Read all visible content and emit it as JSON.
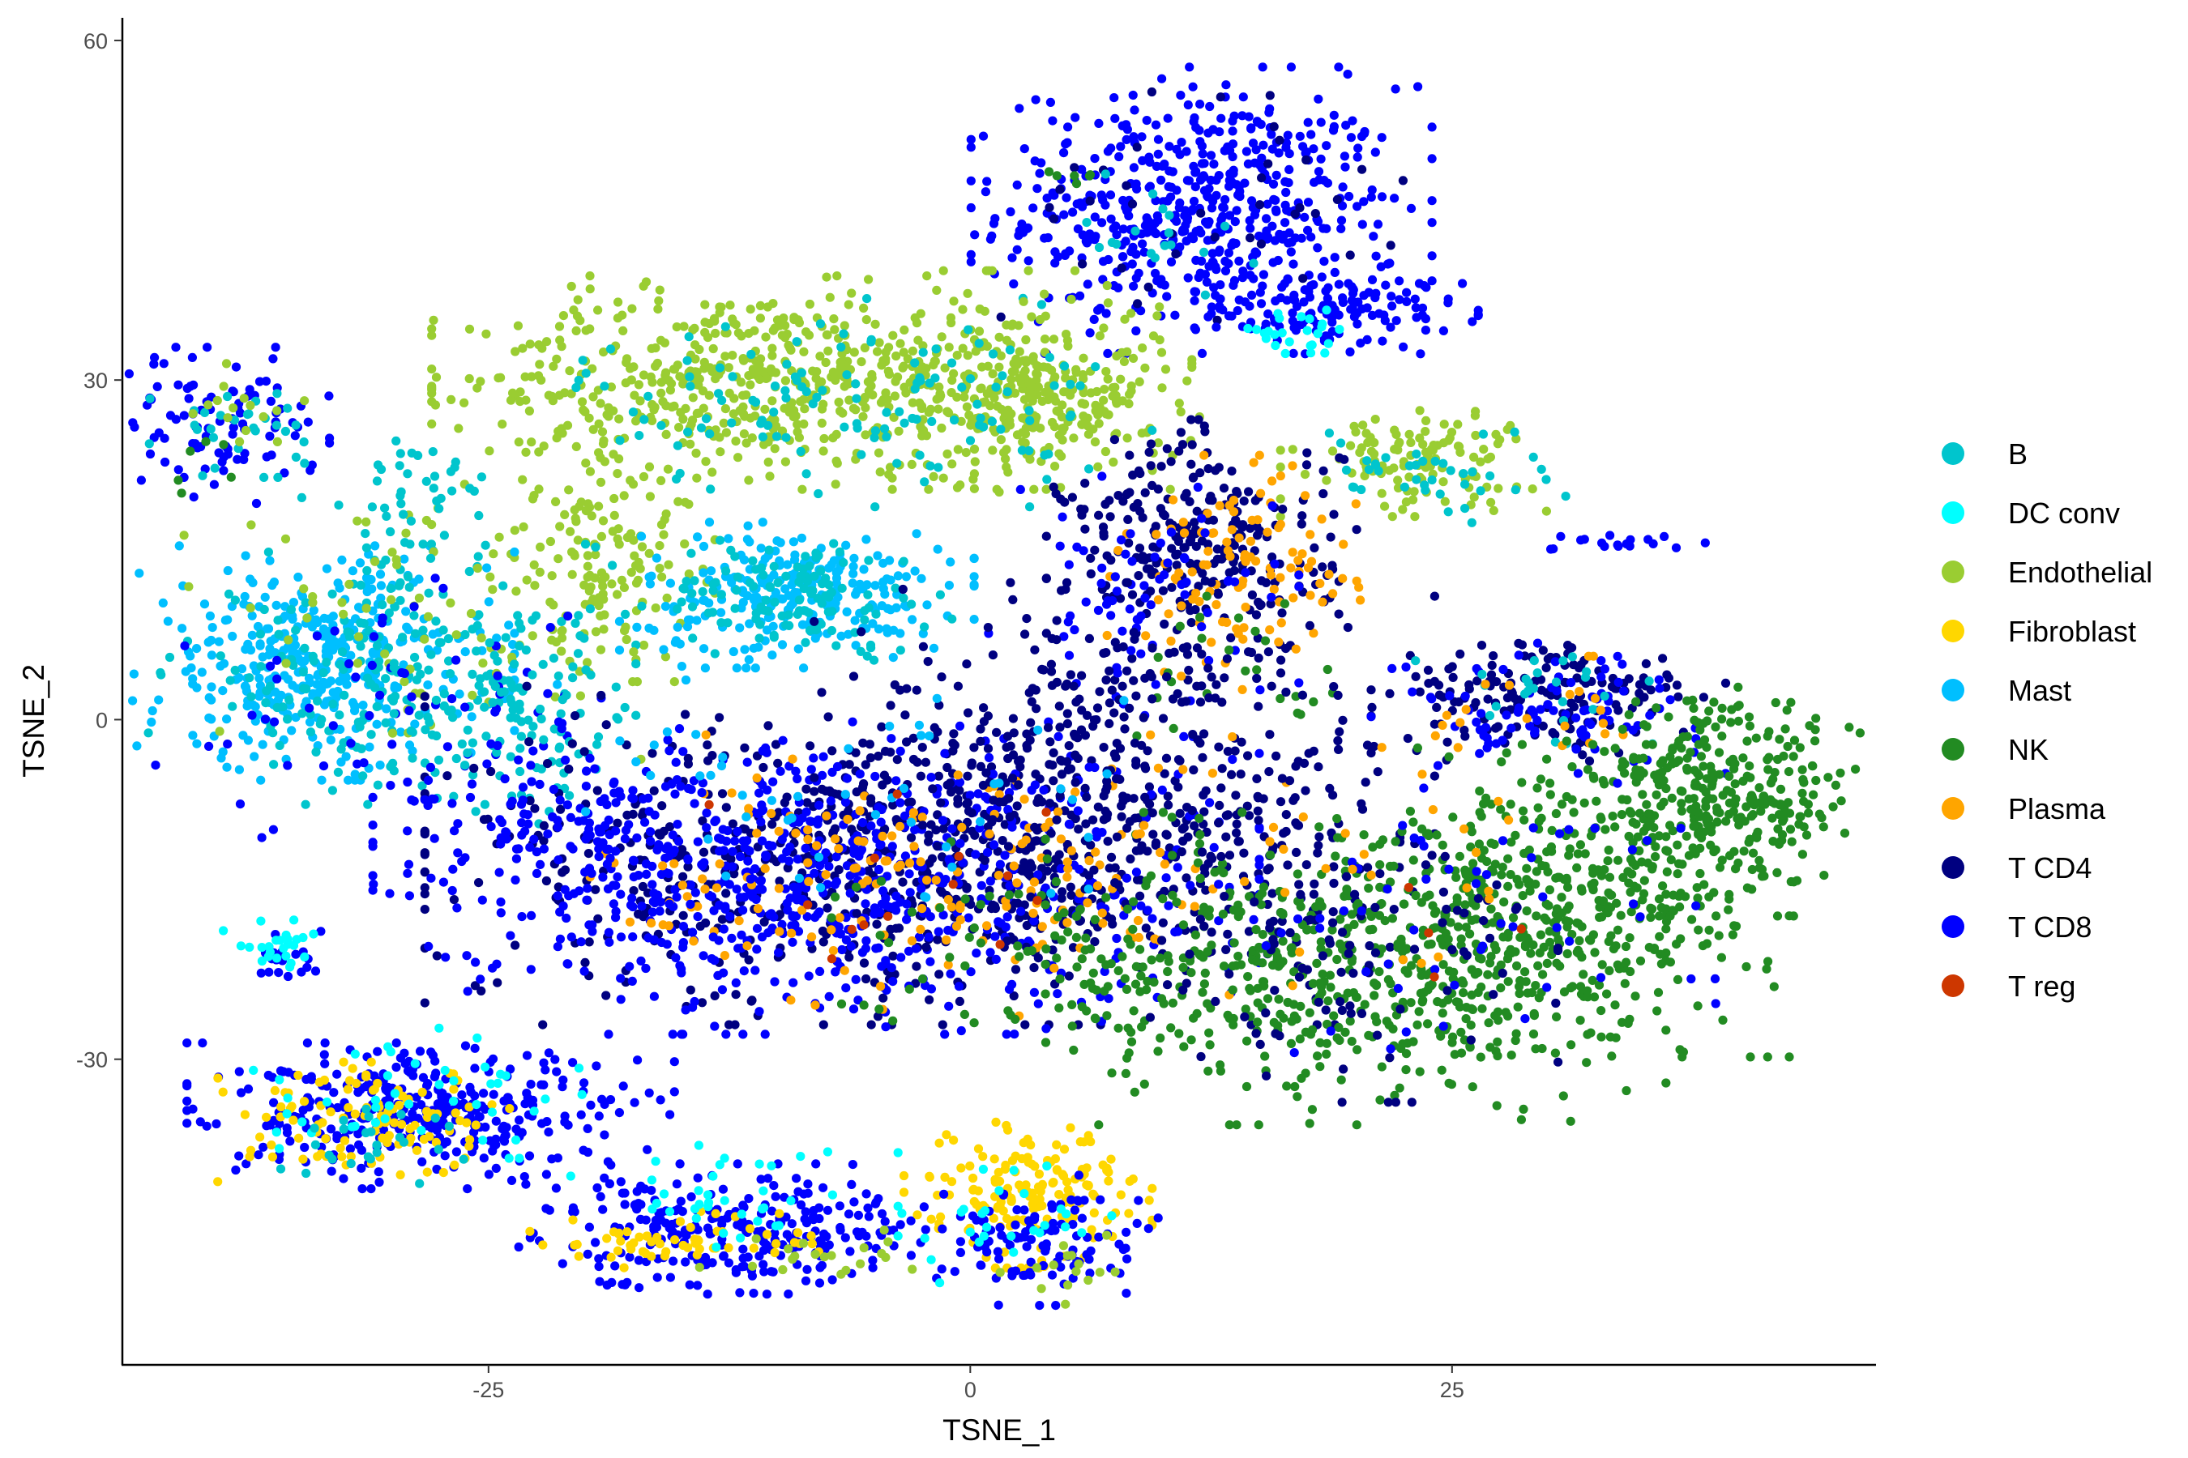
{
  "chart_data": {
    "type": "scatter",
    "title": "",
    "xlabel": "TSNE_1",
    "ylabel": "TSNE_2",
    "xlim": [
      -44,
      47
    ],
    "ylim": [
      -57,
      62
    ],
    "x_ticks": [
      {
        "value": -25,
        "label": "-25"
      },
      {
        "value": 0,
        "label": "0"
      },
      {
        "value": 25,
        "label": "25"
      }
    ],
    "y_ticks": [
      {
        "value": -30,
        "label": "-30"
      },
      {
        "value": 0,
        "label": "0"
      },
      {
        "value": 30,
        "label": "30"
      },
      {
        "value": 60,
        "label": "60"
      }
    ],
    "grid": false,
    "legend_position": "right",
    "series": [
      {
        "name": "B",
        "color": "#00C5CD"
      },
      {
        "name": "DC conv",
        "color": "#00FFFF"
      },
      {
        "name": "Endothelial",
        "color": "#9ACD32"
      },
      {
        "name": "Fibroblast",
        "color": "#FFD700"
      },
      {
        "name": "Mast",
        "color": "#00BFFF"
      },
      {
        "name": "NK",
        "color": "#228B22"
      },
      {
        "name": "Plasma",
        "color": "#FFA500"
      },
      {
        "name": "T CD4",
        "color": "#000080"
      },
      {
        "name": "T CD8",
        "color": "#0000FF"
      },
      {
        "name": "T reg",
        "color": "#CD3700"
      }
    ],
    "clusters": [
      {
        "series": "T CD8",
        "cx": 12,
        "cy": 45,
        "sx": 5.2,
        "sy": 5.5,
        "n": 550
      },
      {
        "series": "T CD4",
        "cx": 12,
        "cy": 45,
        "sx": 5,
        "sy": 5,
        "n": 40
      },
      {
        "series": "T CD8",
        "cx": 19,
        "cy": 36,
        "sx": 3.2,
        "sy": 1.6,
        "n": 120
      },
      {
        "series": "DC conv",
        "cx": 17,
        "cy": 34,
        "sx": 2,
        "sy": 1,
        "n": 25
      },
      {
        "series": "B",
        "cx": 9,
        "cy": 43,
        "sx": 3,
        "sy": 3,
        "n": 20
      },
      {
        "series": "NK",
        "cx": 5,
        "cy": 48,
        "sx": 1,
        "sy": 2,
        "n": 6
      },
      {
        "series": "Endothelial",
        "cx": -13,
        "cy": 30,
        "sx": 6.5,
        "sy": 4,
        "n": 420
      },
      {
        "series": "Endothelial",
        "cx": 0,
        "cy": 30,
        "sx": 5,
        "sy": 4.2,
        "n": 320
      },
      {
        "series": "Endothelial",
        "cx": 5,
        "cy": 27,
        "sx": 3,
        "sy": 3,
        "n": 120
      },
      {
        "series": "Endothelial",
        "cx": -19,
        "cy": 16,
        "sx": 2.5,
        "sy": 5.5,
        "n": 140
      },
      {
        "series": "B",
        "cx": -6,
        "cy": 28,
        "sx": 7,
        "sy": 4,
        "n": 130
      },
      {
        "series": "Mast",
        "cx": -9,
        "cy": 11,
        "sx": 4,
        "sy": 2.8,
        "n": 260
      },
      {
        "series": "B",
        "cx": -9,
        "cy": 11,
        "sx": 3.5,
        "sy": 2.5,
        "n": 120
      },
      {
        "series": "Mast",
        "cx": -34,
        "cy": 5,
        "sx": 4.5,
        "sy": 4.5,
        "n": 400
      },
      {
        "series": "B",
        "cx": -30,
        "cy": 4,
        "sx": 5.5,
        "sy": 5,
        "n": 220
      },
      {
        "series": "Endothelial",
        "cx": -27,
        "cy": 8,
        "sx": 6,
        "sy": 5,
        "n": 90
      },
      {
        "series": "T CD8",
        "cx": -30,
        "cy": 1,
        "sx": 6,
        "sy": 5,
        "n": 70
      },
      {
        "series": "B",
        "cx": -23,
        "cy": 0,
        "sx": 3,
        "sy": 4,
        "n": 90
      },
      {
        "series": "B",
        "cx": -29,
        "cy": 20,
        "sx": 2.5,
        "sy": 2.5,
        "n": 40
      },
      {
        "series": "T CD8",
        "cx": -39,
        "cy": 26,
        "sx": 2.5,
        "sy": 3,
        "n": 100
      },
      {
        "series": "B",
        "cx": -38,
        "cy": 26,
        "sx": 2,
        "sy": 2,
        "n": 30
      },
      {
        "series": "Endothelial",
        "cx": -38,
        "cy": 28,
        "sx": 2,
        "sy": 1.5,
        "n": 15
      },
      {
        "series": "NK",
        "cx": -40,
        "cy": 23,
        "sx": 1,
        "sy": 2,
        "n": 6
      },
      {
        "series": "Endothelial",
        "cx": 23,
        "cy": 23,
        "sx": 3,
        "sy": 2.2,
        "n": 120
      },
      {
        "series": "B",
        "cx": 24,
        "cy": 22,
        "sx": 3,
        "sy": 2,
        "n": 40
      },
      {
        "series": "T CD8",
        "cx": 34,
        "cy": 15.5,
        "sx": 1.8,
        "sy": 0.5,
        "n": 18
      },
      {
        "series": "T CD4",
        "cx": 12,
        "cy": 15,
        "sx": 3.5,
        "sy": 5,
        "n": 280
      },
      {
        "series": "Plasma",
        "cx": 14,
        "cy": 13,
        "sx": 3,
        "sy": 4.5,
        "n": 110
      },
      {
        "series": "T CD8",
        "cx": 9,
        "cy": 10,
        "sx": 3.5,
        "sy": 5,
        "n": 80
      },
      {
        "series": "NK",
        "cx": 14,
        "cy": 4,
        "sx": 3,
        "sy": 3,
        "n": 25
      },
      {
        "series": "T CD4",
        "cx": 30,
        "cy": 2,
        "sx": 4,
        "sy": 2.5,
        "n": 160
      },
      {
        "series": "T CD8",
        "cx": 30,
        "cy": 1,
        "sx": 4,
        "sy": 2.5,
        "n": 90
      },
      {
        "series": "B",
        "cx": 30,
        "cy": 2,
        "sx": 3,
        "sy": 2,
        "n": 25
      },
      {
        "series": "Plasma",
        "cx": 30,
        "cy": 1,
        "sx": 3,
        "sy": 2,
        "n": 20
      },
      {
        "series": "T CD4",
        "cx": -3,
        "cy": -12,
        "sx": 11,
        "sy": 6.5,
        "n": 800
      },
      {
        "series": "T CD8",
        "cx": -8,
        "cy": -14,
        "sx": 10,
        "sy": 6,
        "n": 700
      },
      {
        "series": "Plasma",
        "cx": -2,
        "cy": -14,
        "sx": 8,
        "sy": 5.5,
        "n": 180
      },
      {
        "series": "T CD4",
        "cx": 8,
        "cy": -4,
        "sx": 7,
        "sy": 7,
        "n": 320
      },
      {
        "series": "NK",
        "cx": 6,
        "cy": -20,
        "sx": 6,
        "sy": 4,
        "n": 100
      },
      {
        "series": "T CD8",
        "cx": -20,
        "cy": -10,
        "sx": 4,
        "sy": 4,
        "n": 120
      },
      {
        "series": "Mast",
        "cx": -5,
        "cy": -8,
        "sx": 8,
        "sy": 5,
        "n": 50
      },
      {
        "series": "T reg",
        "cx": -2,
        "cy": -14,
        "sx": 6,
        "sy": 5,
        "n": 14
      },
      {
        "series": "NK",
        "cx": 20,
        "cy": -22,
        "sx": 7,
        "sy": 6,
        "n": 520
      },
      {
        "series": "NK",
        "cx": 31,
        "cy": -16,
        "sx": 5,
        "sy": 6,
        "n": 380
      },
      {
        "series": "NK",
        "cx": 39,
        "cy": -7,
        "sx": 3.5,
        "sy": 4.5,
        "n": 340
      },
      {
        "series": "T CD4",
        "cx": 19,
        "cy": -20,
        "sx": 5,
        "sy": 6,
        "n": 110
      },
      {
        "series": "T CD8",
        "cx": 25,
        "cy": -18,
        "sx": 7,
        "sy": 6,
        "n": 60
      },
      {
        "series": "Plasma",
        "cx": 20,
        "cy": -12,
        "sx": 6,
        "sy": 5,
        "n": 30
      },
      {
        "series": "T reg",
        "cx": 24,
        "cy": -21,
        "sx": 5,
        "sy": 4,
        "n": 4
      },
      {
        "series": "T CD8",
        "cx": -36,
        "cy": -21,
        "sx": 1,
        "sy": 1,
        "n": 20
      },
      {
        "series": "DC conv",
        "cx": -36,
        "cy": -20,
        "sx": 1.2,
        "sy": 1,
        "n": 25
      },
      {
        "series": "T CD8",
        "cx": -28,
        "cy": -35,
        "sx": 5.5,
        "sy": 2.8,
        "n": 360
      },
      {
        "series": "Fibroblast",
        "cx": -31,
        "cy": -36,
        "sx": 3.5,
        "sy": 2.5,
        "n": 110
      },
      {
        "series": "DC conv",
        "cx": -28,
        "cy": -33,
        "sx": 4,
        "sy": 2.5,
        "n": 45
      },
      {
        "series": "B",
        "cx": -31,
        "cy": -37,
        "sx": 2.5,
        "sy": 2,
        "n": 25
      },
      {
        "series": "T CD8",
        "cx": -12,
        "cy": -45,
        "sx": 5,
        "sy": 2.5,
        "n": 280
      },
      {
        "series": "Fibroblast",
        "cx": -15,
        "cy": -46,
        "sx": 3.5,
        "sy": 1.2,
        "n": 60
      },
      {
        "series": "DC conv",
        "cx": -12,
        "cy": -42,
        "sx": 4,
        "sy": 2,
        "n": 35
      },
      {
        "series": "Endothelial",
        "cx": -8,
        "cy": -47,
        "sx": 3,
        "sy": 1.5,
        "n": 20
      },
      {
        "series": "Fibroblast",
        "cx": 3,
        "cy": -42,
        "sx": 2.8,
        "sy": 2.8,
        "n": 170
      },
      {
        "series": "T CD8",
        "cx": 4,
        "cy": -46,
        "sx": 2.5,
        "sy": 2.5,
        "n": 110
      },
      {
        "series": "DC conv",
        "cx": 2,
        "cy": -44,
        "sx": 2.5,
        "sy": 2.5,
        "n": 30
      },
      {
        "series": "Endothelial",
        "cx": 5,
        "cy": -49,
        "sx": 1.5,
        "sy": 1.5,
        "n": 15
      }
    ]
  }
}
